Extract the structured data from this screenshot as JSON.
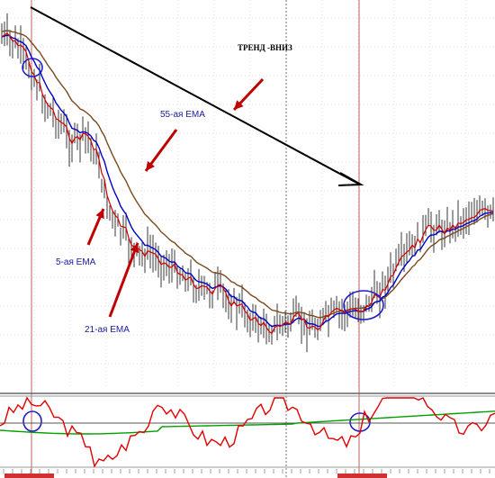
{
  "chart_data": {
    "type": "candlestick",
    "annotations": {
      "trend": "ТРЕНД -ВНИЗ",
      "ema55": "55-ая EMA",
      "ema5": "5-ая EMA",
      "ema21": "21-ая EMA"
    },
    "colors": {
      "price": "#222222",
      "ema5": "#d00000",
      "ema21": "#0000c8",
      "ema55": "#7a4a1e",
      "arrows": "#c00000",
      "trend_arrow": "#000000",
      "circles": "#1e1ec8",
      "osc_fast": "#e00000",
      "osc_slow": "#00a000",
      "grid": "#bbbbbb",
      "vline": "#c06060"
    },
    "grid": true,
    "panels": [
      "price",
      "oscillator"
    ]
  }
}
